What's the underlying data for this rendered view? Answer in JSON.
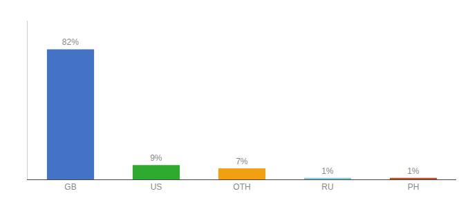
{
  "chart_data": {
    "type": "bar",
    "categories": [
      "GB",
      "US",
      "OTH",
      "RU",
      "PH"
    ],
    "values": [
      82,
      9,
      7,
      1,
      1
    ],
    "value_labels": [
      "82%",
      "9%",
      "7%",
      "1%",
      "1%"
    ],
    "colors": [
      "#4472c4",
      "#2eaa2e",
      "#f0a010",
      "#7ec8e3",
      "#c05020"
    ],
    "ylim": [
      0,
      100
    ],
    "grid": false,
    "data_labels": true,
    "tick_labels": "x"
  }
}
